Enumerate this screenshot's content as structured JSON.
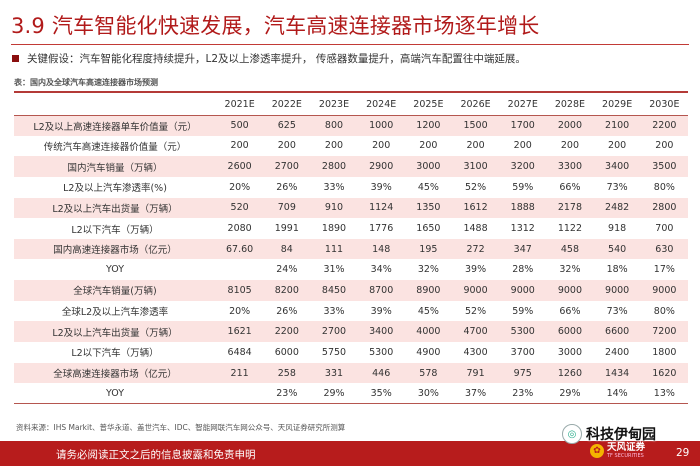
{
  "title": "3.9 汽车智能化快速发展，汽车高速连接器市场逐年增长",
  "assumption": "关键假设：汽车智能化程度持续提升，L2及以上渗透率提升，  传感器数量提升，高端汽车配置往中端延展。",
  "table": {
    "caption": "表：国内及全球汽车高速连接器市场预测",
    "years": [
      "2021E",
      "2022E",
      "2023E",
      "2024E",
      "2025E",
      "2026E",
      "2027E",
      "2028E",
      "2029E",
      "2030E"
    ],
    "rows": [
      {
        "label": "L2及以上高速连接器单车价值量（元）",
        "values": [
          "500",
          "625",
          "800",
          "1000",
          "1200",
          "1500",
          "1700",
          "2000",
          "2100",
          "2200"
        ]
      },
      {
        "label": "传统汽车高速连接器价值量（元）",
        "values": [
          "200",
          "200",
          "200",
          "200",
          "200",
          "200",
          "200",
          "200",
          "200",
          "200"
        ]
      },
      {
        "label": "国内汽车销量（万辆）",
        "values": [
          "2600",
          "2700",
          "2800",
          "2900",
          "3000",
          "3100",
          "3200",
          "3300",
          "3400",
          "3500"
        ]
      },
      {
        "label": "L2及以上汽车渗透率(%)",
        "values": [
          "20%",
          "26%",
          "33%",
          "39%",
          "45%",
          "52%",
          "59%",
          "66%",
          "73%",
          "80%"
        ]
      },
      {
        "label": "L2及以上汽车出货量（万辆）",
        "values": [
          "520",
          "709",
          "910",
          "1124",
          "1350",
          "1612",
          "1888",
          "2178",
          "2482",
          "2800"
        ]
      },
      {
        "label": "L2以下汽车（万辆）",
        "values": [
          "2080",
          "1991",
          "1890",
          "1776",
          "1650",
          "1488",
          "1312",
          "1122",
          "918",
          "700"
        ]
      },
      {
        "label": "国内高速连接器市场（亿元）",
        "values": [
          "67.60",
          "84",
          "111",
          "148",
          "195",
          "272",
          "347",
          "458",
          "540",
          "630"
        ]
      },
      {
        "label": "YOY",
        "values": [
          "",
          "24%",
          "31%",
          "34%",
          "32%",
          "39%",
          "28%",
          "32%",
          "18%",
          "17%"
        ]
      },
      {
        "label": "全球汽车销量(万辆)",
        "values": [
          "8105",
          "8200",
          "8450",
          "8700",
          "8900",
          "9000",
          "9000",
          "9000",
          "9000",
          "9000"
        ]
      },
      {
        "label": "全球L2及以上汽车渗透率",
        "values": [
          "20%",
          "26%",
          "33%",
          "39%",
          "45%",
          "52%",
          "59%",
          "66%",
          "73%",
          "80%"
        ]
      },
      {
        "label": "L2及以上汽车出货量（万辆）",
        "values": [
          "1621",
          "2200",
          "2700",
          "3400",
          "4000",
          "4700",
          "5300",
          "6000",
          "6600",
          "7200"
        ]
      },
      {
        "label": "L2以下汽车（万辆）",
        "values": [
          "6484",
          "6000",
          "5750",
          "5300",
          "4900",
          "4300",
          "3700",
          "3000",
          "2400",
          "1800"
        ]
      },
      {
        "label": "全球高速连接器市场（亿元）",
        "values": [
          "211",
          "258",
          "331",
          "446",
          "578",
          "791",
          "975",
          "1260",
          "1434",
          "1620"
        ]
      },
      {
        "label": "YOY",
        "values": [
          "",
          "23%",
          "29%",
          "35%",
          "30%",
          "37%",
          "23%",
          "29%",
          "14%",
          "13%"
        ]
      }
    ]
  },
  "source": "资料来源：IHS Markit、普华永道、盖世汽车、IDC、智能网联汽车网公众号、天风证券研究所测算",
  "footer": {
    "disclaimer": "请务必阅读正文之后的信息披露和免责申明",
    "watermark": "科技伊甸园",
    "brand": "天风证券",
    "brand_sub": "TF SECURITIES",
    "page": "29"
  }
}
